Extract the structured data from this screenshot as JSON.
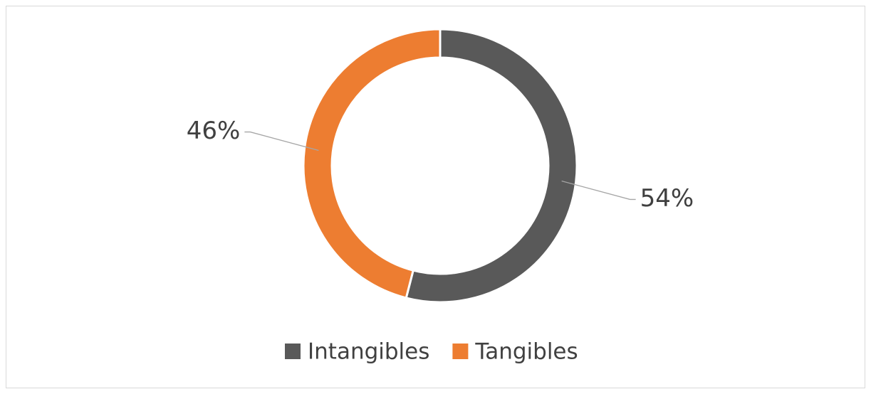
{
  "chart_data": {
    "type": "donut",
    "categories": [
      "Intangibles",
      "Tangibles"
    ],
    "values": [
      54,
      46
    ],
    "value_labels": [
      "54%",
      "46%"
    ],
    "colors": [
      "#595959",
      "#ed7d31"
    ],
    "legend": "bottom"
  }
}
